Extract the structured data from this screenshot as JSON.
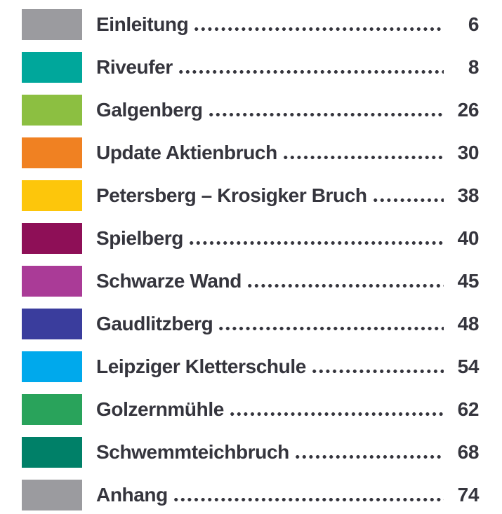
{
  "page_type": "table-of-contents",
  "theme": {
    "text_color": "#35353d",
    "background_color": "#ffffff",
    "dot_leader_color": "#35353d"
  },
  "toc": {
    "entries": [
      {
        "title": "Einleitung",
        "page": "6",
        "color": "#9b9b9f"
      },
      {
        "title": "Riveufer",
        "page": "8",
        "color": "#00a79b"
      },
      {
        "title": "Galgenberg",
        "page": "26",
        "color": "#8cbf41"
      },
      {
        "title": "Update Aktienbruch",
        "page": "30",
        "color": "#f08122"
      },
      {
        "title": "Petersberg – Krosigker Bruch",
        "page": "38",
        "color": "#fdc60b"
      },
      {
        "title": "Spielberg",
        "page": "40",
        "color": "#8e0f57"
      },
      {
        "title": "Schwarze Wand",
        "page": "45",
        "color": "#aa3b97"
      },
      {
        "title": "Gaudlitzberg",
        "page": "48",
        "color": "#3a3d9d"
      },
      {
        "title": "Leipziger Kletterschule",
        "page": "54",
        "color": "#00a9ec"
      },
      {
        "title": "Golzernmühle",
        "page": "62",
        "color": "#29a35b"
      },
      {
        "title": "Schwemmteichbruch",
        "page": "68",
        "color": "#008068"
      },
      {
        "title": "Anhang",
        "page": "74",
        "color": "#9b9b9f"
      }
    ]
  }
}
